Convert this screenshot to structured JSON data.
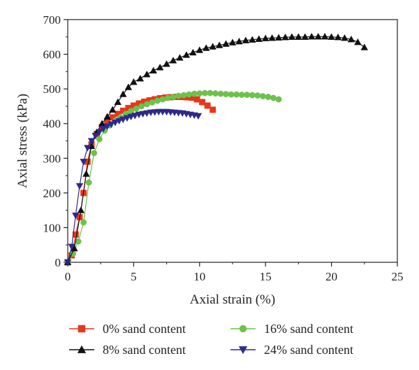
{
  "chart_data": {
    "type": "line",
    "xlabel": "Axial strain (%)",
    "ylabel": "Axial stress (kPa)",
    "xlim": [
      0,
      25
    ],
    "ylim": [
      0,
      700
    ],
    "xticks": [
      "0",
      "5",
      "10",
      "15",
      "20",
      "25"
    ],
    "yticks": [
      "0",
      "100",
      "200",
      "300",
      "400",
      "500",
      "600",
      "700"
    ],
    "grid": false,
    "legend_position": "bottom",
    "series": [
      {
        "name": "0% sand content",
        "color": "#e8361c",
        "marker": "square",
        "x": [
          0,
          0.3,
          0.6,
          0.9,
          1.2,
          1.5,
          1.8,
          2.2,
          2.6,
          3.0,
          3.4,
          3.8,
          4.2,
          4.6,
          5.0,
          5.4,
          5.8,
          6.2,
          6.6,
          7.0,
          7.4,
          7.8,
          8.2,
          8.6,
          9.0,
          9.4,
          9.8,
          10.2,
          10.6,
          11.0
        ],
        "y": [
          0,
          20,
          80,
          130,
          200,
          290,
          340,
          370,
          390,
          405,
          418,
          428,
          437,
          445,
          452,
          458,
          463,
          467,
          470,
          473,
          475,
          476,
          477,
          477,
          476,
          475,
          470,
          462,
          452,
          440
        ]
      },
      {
        "name": "16% sand content",
        "color": "#6cc24a",
        "marker": "circle",
        "x": [
          0,
          0.4,
          0.8,
          1.2,
          1.6,
          2.0,
          2.4,
          2.8,
          3.2,
          3.6,
          4.0,
          4.4,
          4.8,
          5.2,
          5.6,
          6.0,
          6.4,
          6.8,
          7.2,
          7.6,
          8.0,
          8.4,
          8.8,
          9.2,
          9.6,
          10.0,
          10.4,
          10.8,
          11.2,
          11.6,
          12.0,
          12.4,
          12.8,
          13.2,
          13.6,
          14.0,
          14.4,
          14.8,
          15.2,
          15.6,
          16.0
        ],
        "y": [
          0,
          25,
          60,
          115,
          230,
          315,
          355,
          380,
          395,
          408,
          418,
          428,
          436,
          443,
          450,
          456,
          461,
          466,
          470,
          474,
          477,
          480,
          482,
          484,
          486,
          487,
          488,
          488,
          487,
          486,
          485,
          484,
          484,
          483,
          483,
          482,
          481,
          479,
          477,
          474,
          470
        ]
      },
      {
        "name": "8% sand content",
        "color": "#111111",
        "marker": "triangle-up",
        "x": [
          0,
          0.5,
          1.0,
          1.4,
          1.8,
          2.2,
          2.6,
          3.0,
          3.4,
          3.8,
          4.2,
          4.6,
          5.0,
          5.5,
          6.0,
          6.5,
          7.0,
          7.5,
          8.0,
          8.5,
          9.0,
          9.5,
          10.0,
          10.5,
          11.0,
          11.5,
          12.0,
          12.5,
          13.0,
          13.5,
          14.0,
          14.5,
          15.0,
          15.5,
          16.0,
          16.5,
          17.0,
          17.5,
          18.0,
          18.5,
          19.0,
          19.5,
          20.0,
          20.5,
          21.0,
          21.5,
          22.0,
          22.5
        ],
        "y": [
          0,
          40,
          150,
          255,
          335,
          375,
          400,
          420,
          440,
          462,
          485,
          505,
          520,
          530,
          542,
          553,
          562,
          572,
          582,
          590,
          598,
          605,
          612,
          618,
          622,
          626,
          630,
          634,
          637,
          640,
          642,
          644,
          646,
          647,
          648,
          649,
          650,
          650,
          650,
          651,
          651,
          651,
          650,
          649,
          647,
          643,
          635,
          620
        ]
      },
      {
        "name": "24% sand content",
        "color": "#2e2a8a",
        "marker": "triangle-down",
        "x": [
          0,
          0.3,
          0.6,
          0.9,
          1.2,
          1.5,
          1.8,
          2.1,
          2.4,
          2.7,
          3.0,
          3.3,
          3.6,
          3.9,
          4.2,
          4.5,
          4.8,
          5.1,
          5.4,
          5.7,
          6.0,
          6.3,
          6.6,
          6.9,
          7.2,
          7.5,
          7.8,
          8.1,
          8.4,
          8.7,
          9.0,
          9.3,
          9.6,
          9.9
        ],
        "y": [
          0,
          45,
          135,
          220,
          290,
          330,
          350,
          365,
          376,
          385,
          392,
          398,
          403,
          408,
          412,
          416,
          420,
          423,
          426,
          428,
          430,
          432,
          433,
          434,
          434,
          434,
          433,
          432,
          431,
          430,
          428,
          426,
          424,
          422
        ]
      }
    ]
  }
}
